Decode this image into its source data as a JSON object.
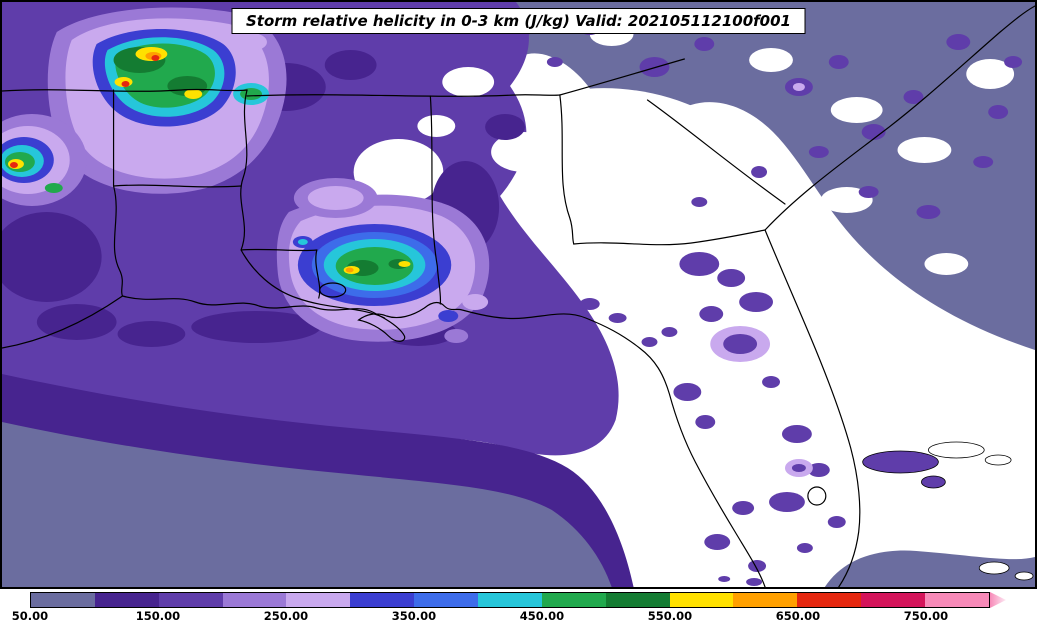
{
  "title": {
    "text": "Storm relative helicity in 0-3 km (J/kg) Valid: 202105112100f001"
  },
  "map": {
    "field": "Storm relative helicity",
    "layer": "0-3 km",
    "units": "J/kg",
    "valid": "202105112100f001"
  },
  "colorbar": {
    "min": 50,
    "max": 800,
    "units": "J/kg",
    "tick_labels": [
      {
        "value": 50,
        "label": "50.00"
      },
      {
        "value": 150,
        "label": "150.00"
      },
      {
        "value": 250,
        "label": "250.00"
      },
      {
        "value": 350,
        "label": "350.00"
      },
      {
        "value": 450,
        "label": "450.00"
      },
      {
        "value": 550,
        "label": "550.00"
      },
      {
        "value": 650,
        "label": "650.00"
      },
      {
        "value": 750,
        "label": "750.00"
      }
    ],
    "segments": [
      {
        "level": 50,
        "color": "#6b6d9f"
      },
      {
        "level": 100,
        "color": "#47248f"
      },
      {
        "level": 150,
        "color": "#5f3daa"
      },
      {
        "level": 200,
        "color": "#9b79d6"
      },
      {
        "level": 250,
        "color": "#c9a9ee"
      },
      {
        "level": 300,
        "color": "#3b3ed1"
      },
      {
        "level": 350,
        "color": "#3d6cea"
      },
      {
        "level": 400,
        "color": "#26c6da"
      },
      {
        "level": 450,
        "color": "#21a94d"
      },
      {
        "level": 500,
        "color": "#147c32"
      },
      {
        "level": 550,
        "color": "#ffe100"
      },
      {
        "level": 600,
        "color": "#ffa000"
      },
      {
        "level": 650,
        "color": "#e5270f"
      },
      {
        "level": 700,
        "color": "#d4145a"
      },
      {
        "level": 750,
        "color": "#f78ab8"
      }
    ],
    "extend_tip_colors": [
      "#f78ab8",
      "#fdeaf4"
    ]
  },
  "chart_data": {
    "type": "heatmap",
    "title": "Storm relative helicity in 0-3 km (J/kg) Valid: 202105112100f001",
    "colorbar_ticks": [
      50,
      150,
      250,
      350,
      450,
      550,
      650,
      750
    ],
    "value_range": [
      50,
      800
    ],
    "legend_position": "bottom"
  }
}
